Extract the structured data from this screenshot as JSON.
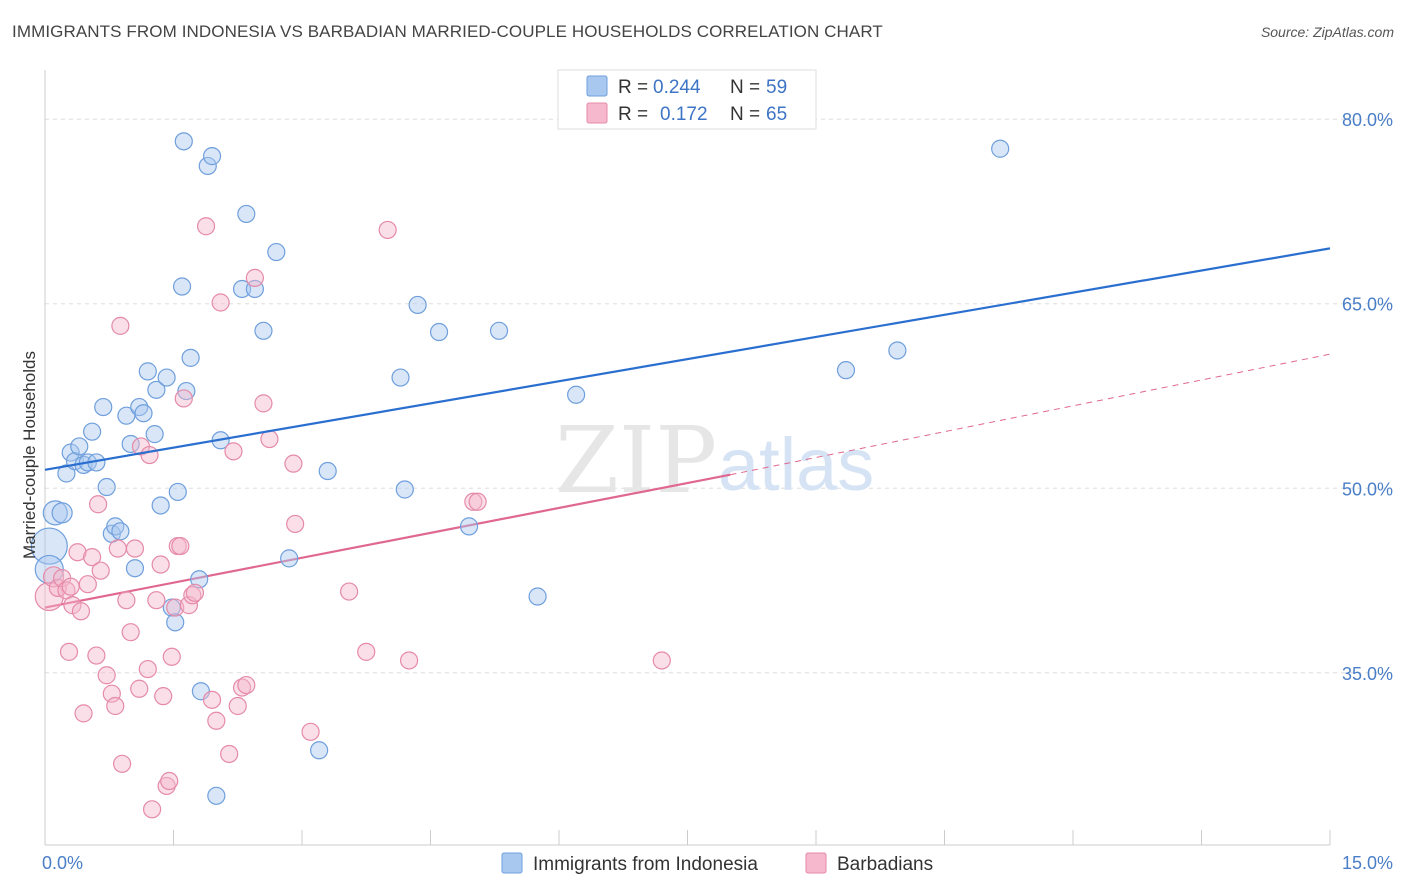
{
  "title": "IMMIGRANTS FROM INDONESIA VS BARBADIAN MARRIED-COUPLE HOUSEHOLDS CORRELATION CHART",
  "source": "Source: ZipAtlas.com",
  "watermark": {
    "zip": "ZIP",
    "atlas": "atlas"
  },
  "colors": {
    "blue_fill": "#a9c8f0",
    "blue_stroke": "#6f9fdc",
    "blue_line": "#2a6fd0",
    "pink_fill": "#f5b8cc",
    "pink_stroke": "#e58aa8",
    "pink_line": "#e0688f",
    "grid": "#dddddd",
    "tick_text": "#4a7ec7"
  },
  "legend": {
    "rows": [
      {
        "r_label": "R =",
        "r_value": "0.244",
        "n_label": "N =",
        "n_value": "59"
      },
      {
        "r_label": "R =",
        "r_value": "0.172",
        "n_label": "N =",
        "n_value": "65"
      }
    ]
  },
  "chart_data": {
    "type": "scatter",
    "title": "IMMIGRANTS FROM INDONESIA VS BARBADIAN MARRIED-COUPLE HOUSEHOLDS CORRELATION CHART",
    "xlabel": "",
    "ylabel": "Married-couple Households",
    "xlim": [
      0,
      15
    ],
    "ylim": [
      21,
      84
    ],
    "x_tick_labels": [
      {
        "value": 0,
        "label": "0.0%"
      },
      {
        "value": 15,
        "label": "15.0%"
      }
    ],
    "y_tick_labels": [
      {
        "value": 80,
        "label": "80.0%"
      },
      {
        "value": 65,
        "label": "65.0%"
      },
      {
        "value": 50,
        "label": "50.0%"
      },
      {
        "value": 35,
        "label": "35.0%"
      }
    ],
    "series": [
      {
        "name": "Immigrants from Indonesia",
        "color": "#a9c8f0",
        "points": [
          {
            "x": 0.05,
            "y": 45.3,
            "s": 18
          },
          {
            "x": 0.05,
            "y": 43.4,
            "s": 14
          },
          {
            "x": 0.12,
            "y": 48.0,
            "s": 12
          },
          {
            "x": 0.2,
            "y": 48.0,
            "s": 10
          },
          {
            "x": 0.25,
            "y": 51.2
          },
          {
            "x": 0.3,
            "y": 52.9
          },
          {
            "x": 0.35,
            "y": 52.2
          },
          {
            "x": 0.4,
            "y": 53.4
          },
          {
            "x": 0.45,
            "y": 51.9
          },
          {
            "x": 0.5,
            "y": 52.1
          },
          {
            "x": 0.55,
            "y": 54.6
          },
          {
            "x": 0.6,
            "y": 52.1
          },
          {
            "x": 0.68,
            "y": 56.6
          },
          {
            "x": 0.72,
            "y": 50.1
          },
          {
            "x": 0.78,
            "y": 46.3
          },
          {
            "x": 0.82,
            "y": 46.9
          },
          {
            "x": 0.88,
            "y": 46.5
          },
          {
            "x": 0.95,
            "y": 55.9
          },
          {
            "x": 1.0,
            "y": 53.6
          },
          {
            "x": 1.05,
            "y": 43.5
          },
          {
            "x": 1.1,
            "y": 56.6
          },
          {
            "x": 1.15,
            "y": 56.1
          },
          {
            "x": 1.2,
            "y": 59.5
          },
          {
            "x": 1.28,
            "y": 54.4
          },
          {
            "x": 1.3,
            "y": 58.0
          },
          {
            "x": 1.35,
            "y": 48.6
          },
          {
            "x": 1.42,
            "y": 59.0
          },
          {
            "x": 1.48,
            "y": 40.3
          },
          {
            "x": 1.52,
            "y": 39.1
          },
          {
            "x": 1.55,
            "y": 49.7
          },
          {
            "x": 1.6,
            "y": 66.4
          },
          {
            "x": 1.62,
            "y": 78.2
          },
          {
            "x": 1.65,
            "y": 57.9
          },
          {
            "x": 1.7,
            "y": 60.6
          },
          {
            "x": 1.8,
            "y": 42.6
          },
          {
            "x": 1.82,
            "y": 33.5
          },
          {
            "x": 1.9,
            "y": 76.2
          },
          {
            "x": 1.95,
            "y": 77.0
          },
          {
            "x": 2.0,
            "y": 25.0
          },
          {
            "x": 2.05,
            "y": 53.9
          },
          {
            "x": 2.3,
            "y": 66.2
          },
          {
            "x": 2.35,
            "y": 72.3
          },
          {
            "x": 2.45,
            "y": 66.2
          },
          {
            "x": 2.55,
            "y": 62.8
          },
          {
            "x": 2.7,
            "y": 69.2
          },
          {
            "x": 2.85,
            "y": 44.3
          },
          {
            "x": 3.2,
            "y": 28.7
          },
          {
            "x": 3.3,
            "y": 51.4
          },
          {
            "x": 4.15,
            "y": 59.0
          },
          {
            "x": 4.2,
            "y": 49.9
          },
          {
            "x": 4.35,
            "y": 64.9
          },
          {
            "x": 4.6,
            "y": 62.7
          },
          {
            "x": 4.95,
            "y": 46.9
          },
          {
            "x": 5.3,
            "y": 62.8
          },
          {
            "x": 5.75,
            "y": 41.2
          },
          {
            "x": 6.2,
            "y": 57.6
          },
          {
            "x": 9.35,
            "y": 59.6
          },
          {
            "x": 9.95,
            "y": 61.2
          },
          {
            "x": 11.15,
            "y": 77.6
          }
        ]
      },
      {
        "name": "Barbadians",
        "color": "#f5b8cc",
        "points": [
          {
            "x": 0.05,
            "y": 41.2,
            "s": 14
          },
          {
            "x": 0.1,
            "y": 42.8,
            "s": 10
          },
          {
            "x": 0.15,
            "y": 41.9
          },
          {
            "x": 0.2,
            "y": 42.7
          },
          {
            "x": 0.25,
            "y": 41.7
          },
          {
            "x": 0.28,
            "y": 36.7
          },
          {
            "x": 0.32,
            "y": 40.5
          },
          {
            "x": 0.38,
            "y": 44.8
          },
          {
            "x": 0.42,
            "y": 40.0
          },
          {
            "x": 0.45,
            "y": 31.7
          },
          {
            "x": 0.5,
            "y": 42.2
          },
          {
            "x": 0.55,
            "y": 44.4
          },
          {
            "x": 0.6,
            "y": 36.4
          },
          {
            "x": 0.62,
            "y": 48.7
          },
          {
            "x": 0.65,
            "y": 43.3
          },
          {
            "x": 0.72,
            "y": 34.8
          },
          {
            "x": 0.78,
            "y": 33.3
          },
          {
            "x": 0.82,
            "y": 32.3
          },
          {
            "x": 0.85,
            "y": 45.1
          },
          {
            "x": 0.88,
            "y": 63.2
          },
          {
            "x": 0.9,
            "y": 27.6
          },
          {
            "x": 0.95,
            "y": 40.9
          },
          {
            "x": 1.0,
            "y": 38.3
          },
          {
            "x": 1.05,
            "y": 45.1
          },
          {
            "x": 1.1,
            "y": 33.7
          },
          {
            "x": 1.12,
            "y": 53.4
          },
          {
            "x": 1.2,
            "y": 35.3
          },
          {
            "x": 1.22,
            "y": 52.7
          },
          {
            "x": 1.25,
            "y": 23.9
          },
          {
            "x": 1.3,
            "y": 40.9
          },
          {
            "x": 1.35,
            "y": 43.8
          },
          {
            "x": 1.38,
            "y": 33.1
          },
          {
            "x": 1.42,
            "y": 25.8
          },
          {
            "x": 1.45,
            "y": 26.2
          },
          {
            "x": 1.48,
            "y": 36.3
          },
          {
            "x": 1.52,
            "y": 40.3
          },
          {
            "x": 1.55,
            "y": 45.3
          },
          {
            "x": 1.58,
            "y": 45.3
          },
          {
            "x": 1.62,
            "y": 57.3
          },
          {
            "x": 1.68,
            "y": 40.5
          },
          {
            "x": 1.72,
            "y": 41.3
          },
          {
            "x": 1.75,
            "y": 41.5
          },
          {
            "x": 1.88,
            "y": 71.3
          },
          {
            "x": 1.95,
            "y": 32.8
          },
          {
            "x": 2.0,
            "y": 31.1
          },
          {
            "x": 2.05,
            "y": 65.1
          },
          {
            "x": 2.15,
            "y": 28.4
          },
          {
            "x": 2.2,
            "y": 53.0
          },
          {
            "x": 2.25,
            "y": 32.3
          },
          {
            "x": 2.3,
            "y": 33.8
          },
          {
            "x": 2.35,
            "y": 34.0
          },
          {
            "x": 2.45,
            "y": 67.1
          },
          {
            "x": 2.55,
            "y": 56.9
          },
          {
            "x": 2.62,
            "y": 54.0
          },
          {
            "x": 2.9,
            "y": 52.0
          },
          {
            "x": 2.92,
            "y": 47.1
          },
          {
            "x": 3.1,
            "y": 30.2
          },
          {
            "x": 3.55,
            "y": 41.6
          },
          {
            "x": 3.75,
            "y": 36.7
          },
          {
            "x": 4.0,
            "y": 71.0
          },
          {
            "x": 4.25,
            "y": 36.0
          },
          {
            "x": 5.0,
            "y": 48.9
          },
          {
            "x": 5.05,
            "y": 48.9
          },
          {
            "x": 7.2,
            "y": 36.0
          },
          {
            "x": 0.3,
            "y": 42.0
          }
        ]
      }
    ],
    "trendlines": [
      {
        "series": "Immigrants from Indonesia",
        "x": [
          0,
          15
        ],
        "y": [
          51.5,
          69.5
        ],
        "style": "solid"
      },
      {
        "series": "Barbadians",
        "x": [
          0,
          8
        ],
        "y": [
          40.3,
          51.1
        ],
        "style": "solid"
      },
      {
        "series": "Barbadians",
        "x": [
          8,
          15
        ],
        "y": [
          51.1,
          60.9
        ],
        "style": "dashed"
      }
    ]
  }
}
